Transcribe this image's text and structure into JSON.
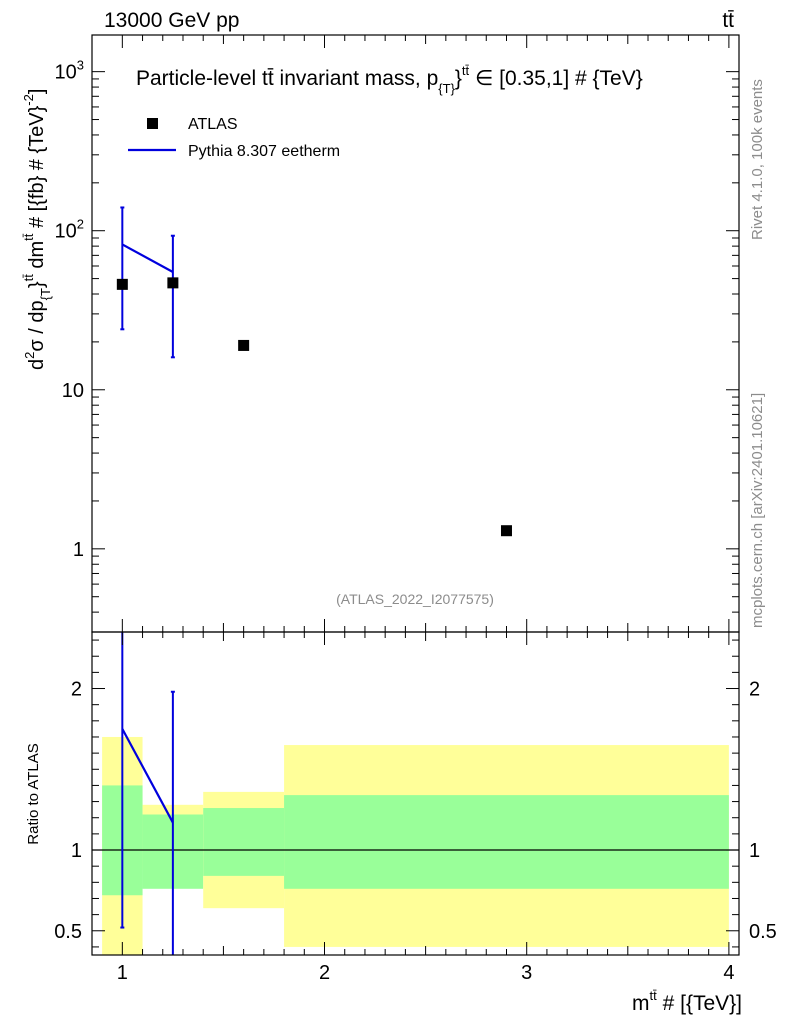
{
  "header": {
    "left": "13000 GeV pp",
    "right": "tt̄"
  },
  "side": {
    "rivet": "Rivet 4.1.0,  100k events",
    "mcplots": "mcplots.cern.ch [arXiv:2401.10621]"
  },
  "colors": {
    "data": "#000000",
    "mc": "#0000dd",
    "band_inner": "#99ff99",
    "band_outer": "#ffff99"
  },
  "chart_data": [
    {
      "type": "scatter",
      "title": "Particle-level tt̄ invariant mass, p_{T}^tt̄ ∈ [0.35,1] # {TeV}",
      "title_parts": {
        "pre": "Particle-level tt̄ invariant mass, p",
        "sub": "{T}",
        "mid": "}",
        "sup": "tt̄",
        "post": " ∈ [0.35,1] # {TeV}"
      },
      "ylabel": "d²σ / dp_{T}^tt̄ dm^tt̄ # [{fb} # {TeV}⁻²]",
      "ylabel_parts": {
        "a": "d",
        "a_sup": "2",
        "b": "σ / dp",
        "b_sub": "{T",
        "c": "}",
        "c_sup": "tt̄",
        "d": " dm",
        "d_sup": "tt̄",
        "e": " # [{fb} # {TeV}",
        "e_sup": "-2",
        "f": "]"
      },
      "yscale": "log",
      "ylim": [
        0.3,
        1700
      ],
      "xlim": [
        0.85,
        4.05
      ],
      "yticks": [
        {
          "v": 1,
          "label": "1"
        },
        {
          "v": 10,
          "label": "10"
        },
        {
          "v": 100,
          "label": "10",
          "exp": "2"
        },
        {
          "v": 1000,
          "label": "10",
          "exp": "3"
        }
      ],
      "legend": [
        {
          "label": "ATLAS",
          "style": "marker"
        },
        {
          "label": "Pythia 8.307 eetherm",
          "style": "line"
        }
      ],
      "watermark": "(ATLAS_2022_I2077575)",
      "series": [
        {
          "name": "ATLAS",
          "x": [
            1.0,
            1.25,
            1.6,
            2.9
          ],
          "y": [
            46,
            47,
            19,
            1.3
          ]
        },
        {
          "name": "Pythia 8.307 eetherm",
          "x": [
            1.0,
            1.25
          ],
          "y": [
            82,
            55
          ],
          "err_low": [
            24,
            16
          ],
          "err_high": [
            140,
            93
          ]
        }
      ]
    },
    {
      "type": "line",
      "ylabel": "Ratio to ATLAS",
      "xlabel": "m^tt̄ # [{TeV}]",
      "xlabel_parts": {
        "base": "m",
        "sup": "tt̄",
        "rest": " # [{TeV}]"
      },
      "ylim": [
        0.35,
        2.35
      ],
      "xlim": [
        0.85,
        4.05
      ],
      "xticks": [
        {
          "v": 1,
          "label": "1"
        },
        {
          "v": 2,
          "label": "2"
        },
        {
          "v": 3,
          "label": "3"
        },
        {
          "v": 4,
          "label": "4"
        }
      ],
      "yticks": [
        {
          "v": 0.5,
          "label": "0.5"
        },
        {
          "v": 1,
          "label": "1"
        },
        {
          "v": 2,
          "label": "2"
        }
      ],
      "bands": [
        {
          "x0": 0.9,
          "x1": 1.1,
          "in_lo": 0.72,
          "in_hi": 1.4,
          "out_lo": 0.3,
          "out_hi": 1.7
        },
        {
          "x0": 1.1,
          "x1": 1.4,
          "in_lo": 0.76,
          "in_hi": 1.22,
          "out_lo": 0.88,
          "out_hi": 1.28
        },
        {
          "x0": 1.4,
          "x1": 1.8,
          "in_lo": 0.84,
          "in_hi": 1.26,
          "out_lo": 0.64,
          "out_hi": 1.36
        },
        {
          "x0": 1.8,
          "x1": 4.0,
          "in_lo": 0.76,
          "in_hi": 1.34,
          "out_lo": 0.4,
          "out_hi": 1.65
        }
      ],
      "series": [
        {
          "name": "Pythia 8.307 eetherm",
          "x": [
            1.0,
            1.25
          ],
          "y": [
            1.75,
            1.17
          ],
          "err_low": [
            0.52,
            0.3
          ],
          "err_high": [
            2.4,
            1.98
          ]
        }
      ]
    }
  ]
}
